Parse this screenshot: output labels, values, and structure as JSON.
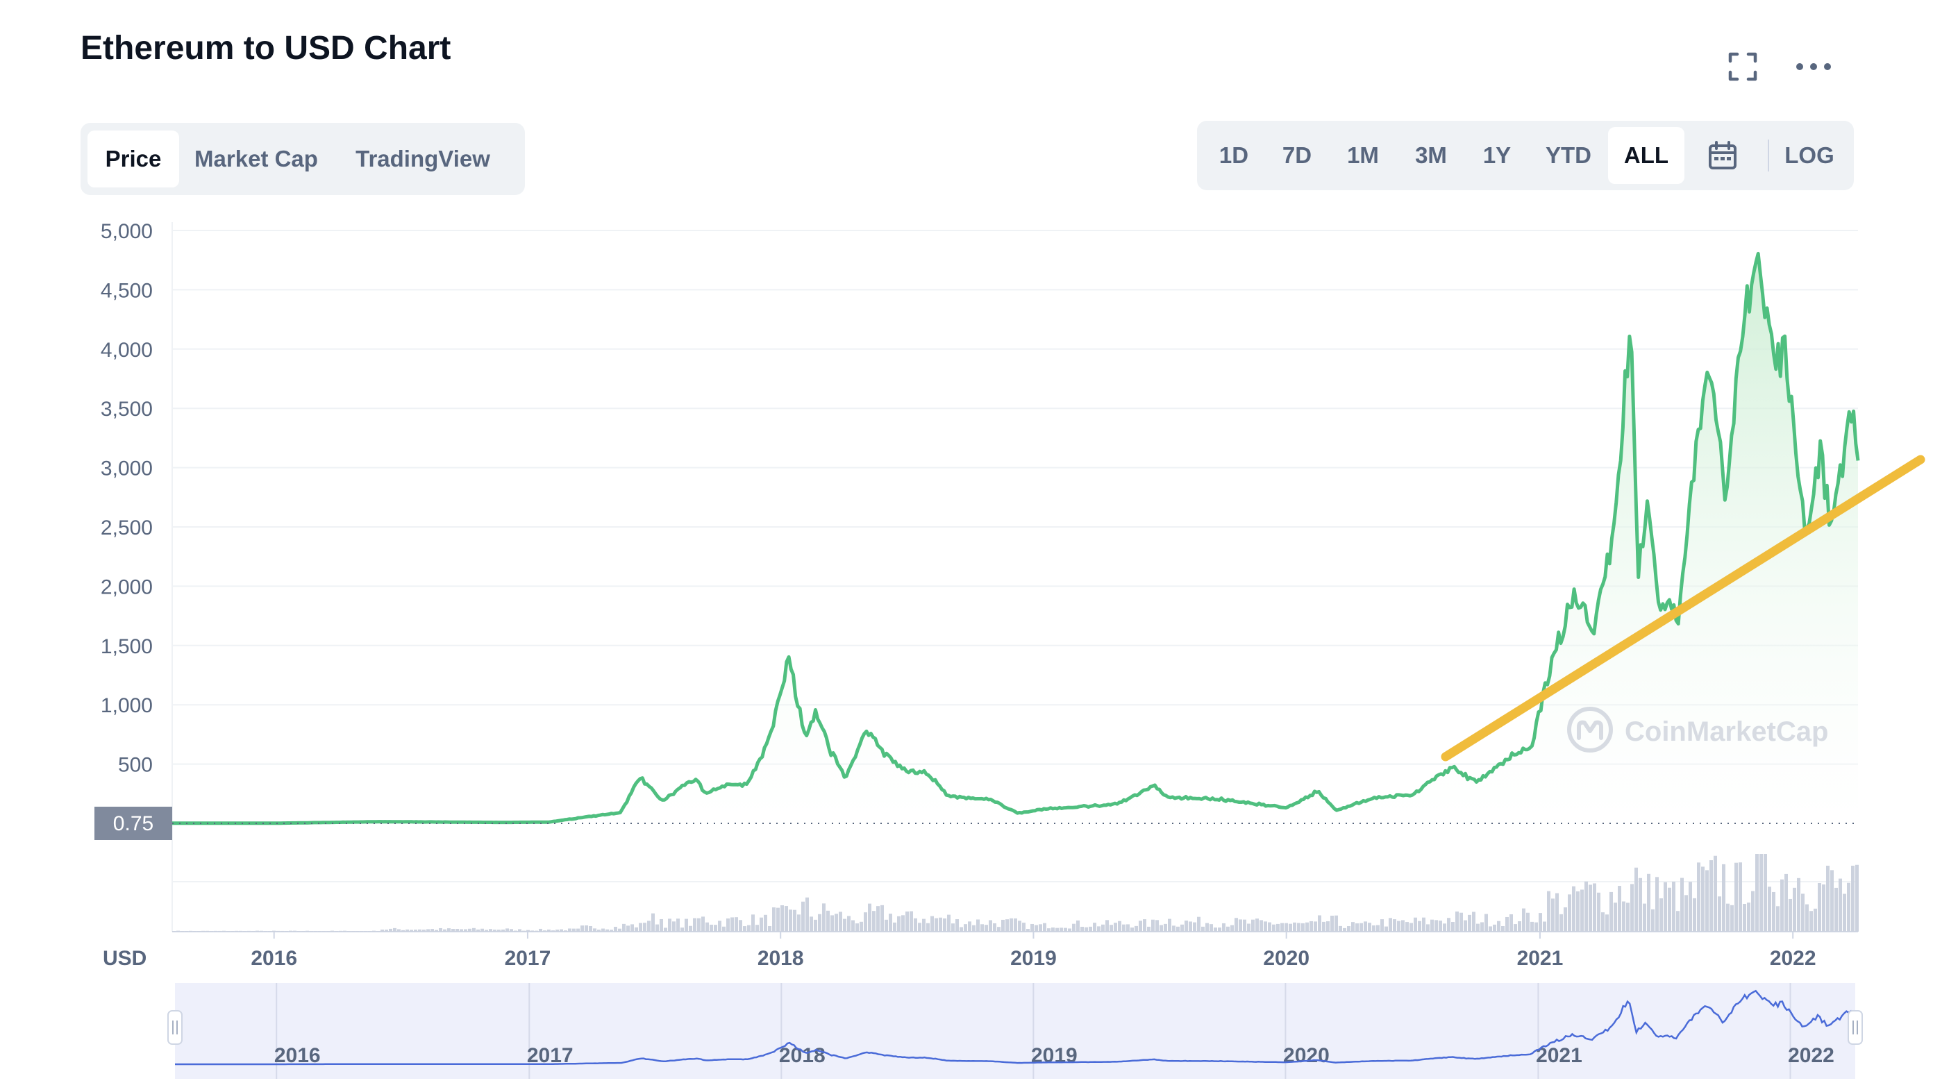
{
  "header": {
    "title": "Ethereum to USD Chart",
    "fullscreen_icon": "fullscreen-icon",
    "more_icon": "more-dots-icon"
  },
  "chart_tabs": [
    {
      "label": "Price",
      "active": true
    },
    {
      "label": "Market Cap",
      "active": false
    },
    {
      "label": "TradingView",
      "active": false
    }
  ],
  "ranges": [
    {
      "label": "1D",
      "active": false
    },
    {
      "label": "7D",
      "active": false
    },
    {
      "label": "1M",
      "active": false
    },
    {
      "label": "3M",
      "active": false
    },
    {
      "label": "1Y",
      "active": false
    },
    {
      "label": "YTD",
      "active": false
    },
    {
      "label": "ALL",
      "active": true
    }
  ],
  "calendar_icon": "calendar-icon",
  "log_label": "LOG",
  "watermark": "CoinMarketCap",
  "current_price_label": "0.75",
  "currency_label": "USD",
  "colors": {
    "line": "#4fbf7f",
    "area_top": "#c7eccf",
    "trendline": "#f0bc3c",
    "volume": "#ccd2de",
    "navigator_line": "#4a6bd8",
    "navigator_bg": "#eef0fb"
  },
  "chart_data": {
    "type": "line",
    "title": "Ethereum to USD Chart",
    "ylabel": "",
    "xlabel": "",
    "ylim": [
      0,
      5000
    ],
    "y_ticks": [
      "5,000",
      "4,500",
      "4,000",
      "3,500",
      "3,000",
      "2,500",
      "2,000",
      "1,500",
      "1,000",
      "500"
    ],
    "x_ticks": [
      "2016",
      "2017",
      "2018",
      "2019",
      "2020",
      "2021",
      "2022"
    ],
    "xlim": [
      "2015-08-07",
      "2022-04-05"
    ],
    "series": [
      {
        "values": [
          [
            "2015-08-07",
            1
          ],
          [
            "2016-01-01",
            1
          ],
          [
            "2016-06-01",
            14
          ],
          [
            "2016-12-01",
            8
          ],
          [
            "2017-02-01",
            11
          ],
          [
            "2017-03-15",
            45
          ],
          [
            "2017-05-15",
            90
          ],
          [
            "2017-06-12",
            390
          ],
          [
            "2017-07-15",
            190
          ],
          [
            "2017-08-31",
            380
          ],
          [
            "2017-09-15",
            250
          ],
          [
            "2017-10-15",
            330
          ],
          [
            "2017-11-15",
            330
          ],
          [
            "2017-12-15",
            700
          ],
          [
            "2018-01-13",
            1390
          ],
          [
            "2018-02-06",
            700
          ],
          [
            "2018-02-20",
            940
          ],
          [
            "2018-03-15",
            600
          ],
          [
            "2018-04-05",
            380
          ],
          [
            "2018-05-05",
            790
          ],
          [
            "2018-06-01",
            580
          ],
          [
            "2018-07-01",
            450
          ],
          [
            "2018-08-01",
            420
          ],
          [
            "2018-09-01",
            230
          ],
          [
            "2018-11-01",
            200
          ],
          [
            "2018-12-10",
            85
          ],
          [
            "2019-01-15",
            120
          ],
          [
            "2019-03-01",
            135
          ],
          [
            "2019-05-01",
            160
          ],
          [
            "2019-06-25",
            320
          ],
          [
            "2019-07-15",
            220
          ],
          [
            "2019-09-15",
            210
          ],
          [
            "2019-11-01",
            180
          ],
          [
            "2020-01-01",
            130
          ],
          [
            "2020-02-15",
            270
          ],
          [
            "2020-03-13",
            110
          ],
          [
            "2020-05-01",
            210
          ],
          [
            "2020-07-01",
            240
          ],
          [
            "2020-08-01",
            380
          ],
          [
            "2020-08-25",
            470
          ],
          [
            "2020-10-01",
            350
          ],
          [
            "2020-11-25",
            580
          ],
          [
            "2020-12-20",
            650
          ],
          [
            "2021-01-10",
            1200
          ],
          [
            "2021-02-20",
            1950
          ],
          [
            "2021-03-20",
            1650
          ],
          [
            "2021-04-15",
            2350
          ],
          [
            "2021-05-12",
            4170
          ],
          [
            "2021-05-23",
            2100
          ],
          [
            "2021-06-05",
            2700
          ],
          [
            "2021-06-22",
            1850
          ],
          [
            "2021-07-20",
            1780
          ],
          [
            "2021-08-15",
            3200
          ],
          [
            "2021-09-05",
            3900
          ],
          [
            "2021-09-25",
            2800
          ],
          [
            "2021-10-20",
            4100
          ],
          [
            "2021-11-10",
            4810
          ],
          [
            "2021-12-04",
            3900
          ],
          [
            "2021-12-20",
            4000
          ],
          [
            "2022-01-22",
            2400
          ],
          [
            "2022-02-10",
            3200
          ],
          [
            "2022-02-24",
            2500
          ],
          [
            "2022-03-28",
            3500
          ],
          [
            "2022-04-05",
            3050
          ]
        ]
      }
    ],
    "volume_visible": true,
    "trendline": true,
    "grid": true,
    "navigator": true,
    "navigator_ticks": [
      "2016",
      "2017",
      "2018",
      "2019",
      "2020",
      "2021",
      "2022"
    ]
  }
}
